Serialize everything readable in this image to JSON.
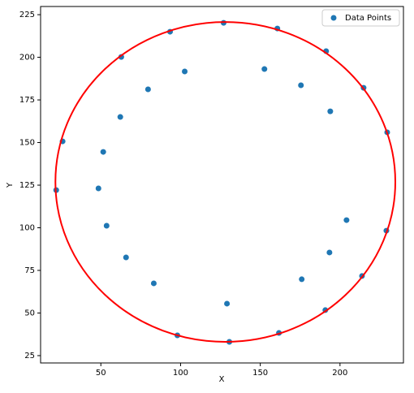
{
  "chart_data": {
    "type": "scatter",
    "x_label": "X",
    "y_label": "Y",
    "series": [
      {
        "name": "Data Points",
        "color": "#1f77b4",
        "x": [
          127,
          160.7,
          191.3,
          214.8,
          229.6,
          229.1,
          213.8,
          190.8,
          161.7,
          130.6,
          98,
          83.2,
          65.8,
          53.6,
          48.5,
          51.5,
          62.2,
          79.6,
          102.6,
          152.6,
          175.5,
          193.9,
          204.1,
          193.4,
          176,
          129.1,
          22,
          26,
          62.8,
          93.4
        ],
        "values": [
          220.2,
          216.9,
          203.6,
          182.1,
          156,
          98.3,
          71.7,
          51.7,
          38.3,
          33.1,
          36.9,
          67.4,
          82.6,
          101.2,
          123.1,
          144.5,
          165,
          181.2,
          191.7,
          193.1,
          183.6,
          168.3,
          104.5,
          85.5,
          69.8,
          55.5,
          122.1,
          150.7,
          200.2,
          215
        ]
      }
    ],
    "fit_ellipse": {
      "center_x": 128.1,
      "center_y": 126.9,
      "radius_x": 106.6,
      "radius_y": 93.8,
      "color": "#ff0000"
    },
    "xlim": [
      12.2,
      239.8
    ],
    "xticks": [
      50,
      100,
      150,
      200
    ],
    "ylim": [
      20.7,
      229.8
    ],
    "yticks": [
      25,
      50,
      75,
      100,
      125,
      150,
      175,
      200,
      225
    ],
    "legend": "upper-right"
  }
}
